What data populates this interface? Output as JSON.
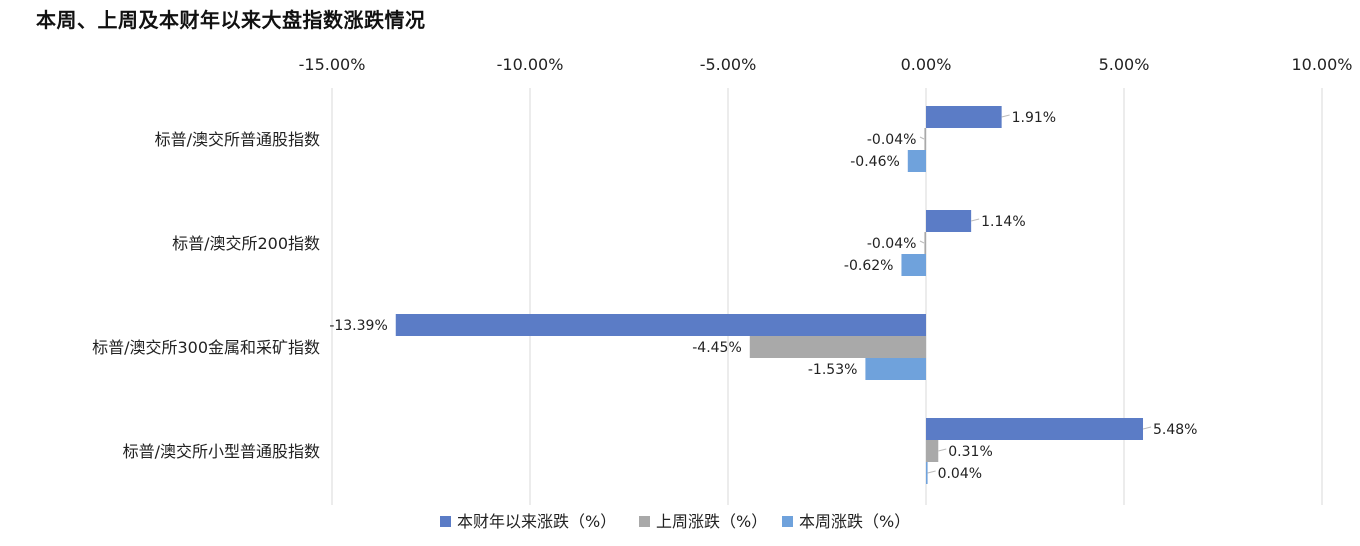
{
  "chart_data": {
    "type": "bar",
    "orientation": "horizontal",
    "title": "本周、上周及本财年以来大盘指数涨跌情况",
    "categories": [
      "标普/澳交所普通股指数",
      "标普/澳交所200指数",
      "标普/澳交所300金属和采矿指数",
      "标普/澳交所小型普通股指数"
    ],
    "series": [
      {
        "name": "本财年以来涨跌（%）",
        "color": "#5b7cc6",
        "values": [
          1.91,
          1.14,
          -13.39,
          5.48
        ],
        "labels": [
          "1.91%",
          "1.14%",
          "-13.39%",
          "5.48%"
        ]
      },
      {
        "name": "上周涨跌（%）",
        "color": "#a9a9a9",
        "values": [
          -0.04,
          -0.04,
          -4.45,
          0.31
        ],
        "labels": [
          "-0.04%",
          "-0.04%",
          "-4.45%",
          "0.31%"
        ]
      },
      {
        "name": "本周涨跌（%）",
        "color": "#6fa2dc",
        "values": [
          -0.46,
          -0.62,
          -1.53,
          0.04
        ],
        "labels": [
          "-0.46%",
          "-0.62%",
          "-1.53%",
          "0.04%"
        ]
      }
    ],
    "x_ticks": [
      -15,
      -10,
      -5,
      0,
      5,
      10
    ],
    "x_tick_labels": [
      "-15.00%",
      "-10.00%",
      "-5.00%",
      "0.00%",
      "5.00%",
      "10.00%"
    ],
    "xlim": [
      -15,
      10
    ],
    "axis_position": "top",
    "grid": true,
    "legend_position": "bottom"
  }
}
